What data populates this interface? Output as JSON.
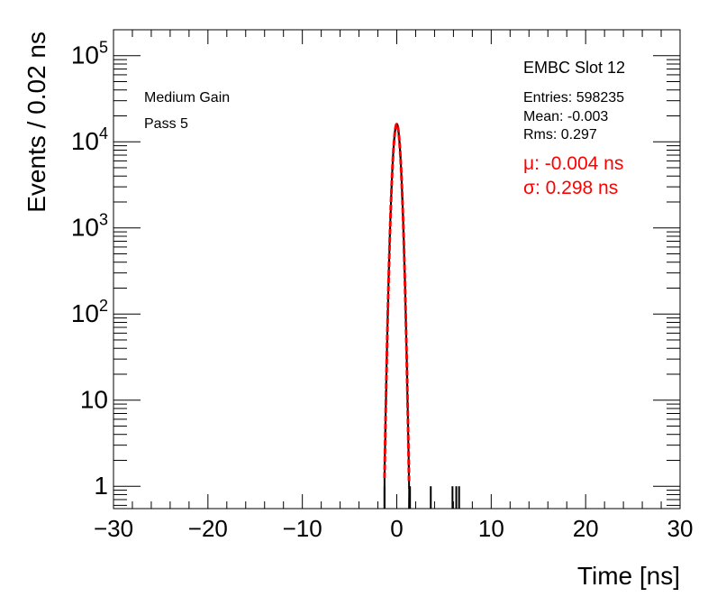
{
  "chart_data": {
    "type": "histogram",
    "xlabel": "Time [ns]",
    "ylabel": "Events / 0.02 ns",
    "xlim": [
      -30,
      30
    ],
    "ylim": [
      0.55,
      200000
    ],
    "ylog": true,
    "x_ticks": [
      {
        "value": -30,
        "label": "−30"
      },
      {
        "value": -20,
        "label": "−20"
      },
      {
        "value": -10,
        "label": "−10"
      },
      {
        "value": 0,
        "label": "0"
      },
      {
        "value": 10,
        "label": "10"
      },
      {
        "value": 20,
        "label": "20"
      },
      {
        "value": 30,
        "label": "30"
      }
    ],
    "y_ticks": [
      {
        "value": 1,
        "base": "1",
        "exp": ""
      },
      {
        "value": 10,
        "base": "10",
        "exp": ""
      },
      {
        "value": 100,
        "base": "10",
        "exp": "2"
      },
      {
        "value": 1000,
        "base": "10",
        "exp": "3"
      },
      {
        "value": 10000,
        "base": "10",
        "exp": "4"
      },
      {
        "value": 100000,
        "base": "10",
        "exp": "5"
      }
    ],
    "left_text": [
      "Medium Gain",
      "Pass 5"
    ],
    "stats": {
      "title": "EMBC Slot 12",
      "lines": [
        "Entries: 598235",
        "Mean: -0.003",
        "Rms: 0.297"
      ],
      "fit_lines": [
        "μ: -0.004 ns",
        "σ: 0.298 ns"
      ]
    },
    "fit": {
      "type": "gaussian",
      "mean": -0.004,
      "sigma": 0.298,
      "amplitude": 16000,
      "color": "#ff0000"
    },
    "histogram": {
      "color": "#000000",
      "outlier_x": [
        -1.3,
        1.4,
        3.6,
        5.9,
        6.3,
        6.6
      ]
    }
  }
}
